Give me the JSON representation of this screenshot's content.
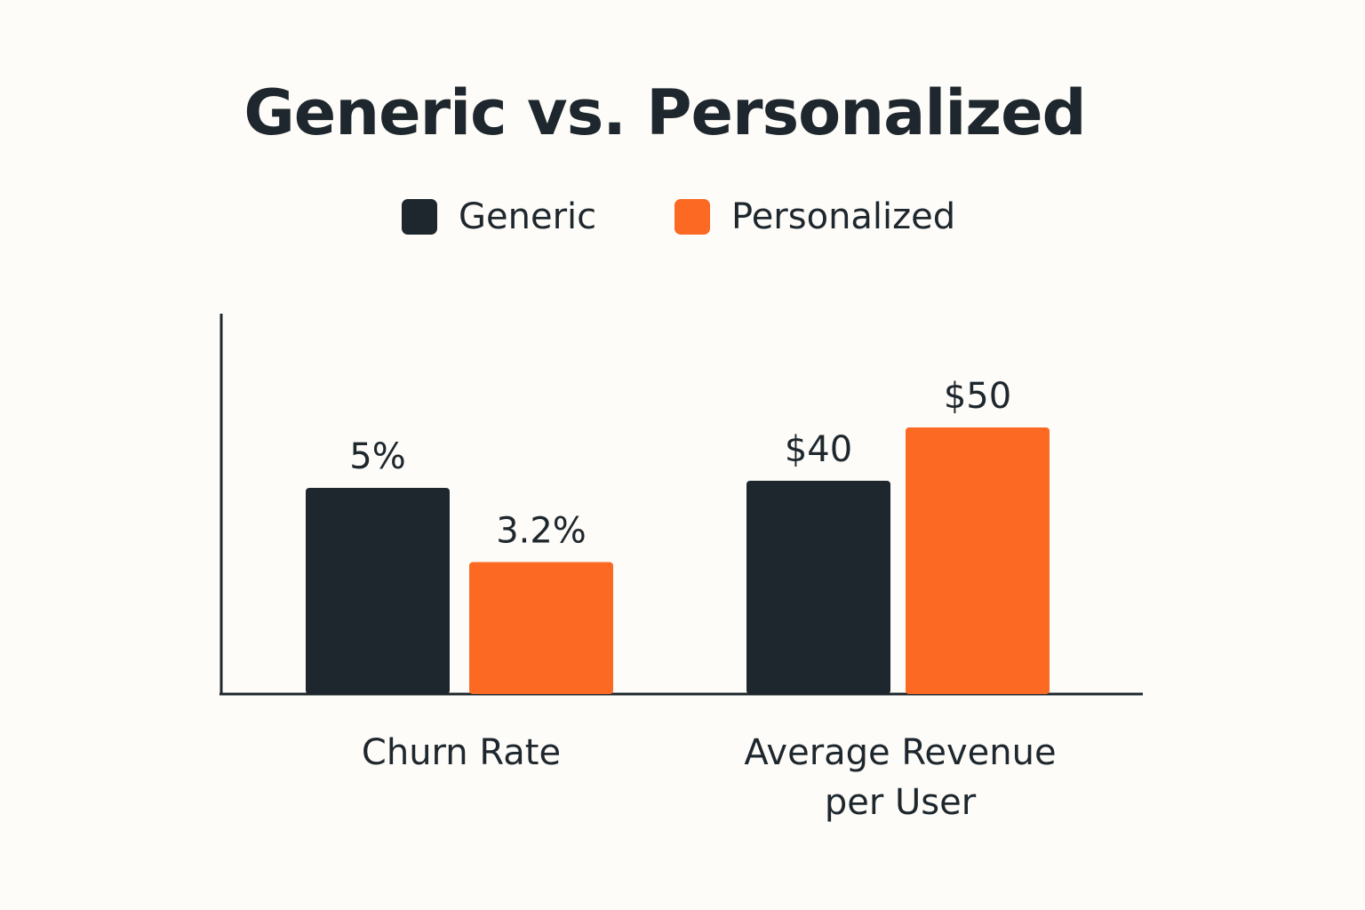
{
  "title": "Generic vs. Personalized",
  "colors": {
    "background": "#fdfcf8",
    "generic": "#1e272d",
    "personalized": "#fb6923",
    "text": "#1e272d"
  },
  "legend": {
    "items": [
      {
        "label": "Generic",
        "color": "#1e272d"
      },
      {
        "label": "Personalized",
        "color": "#fb6923"
      }
    ],
    "placement": "top-center"
  },
  "chart_data": {
    "type": "bar",
    "title": "Generic vs. Personalized",
    "categories": [
      "Churn Rate",
      "Average Revenue per User"
    ],
    "category_label_lines": [
      [
        "Churn Rate"
      ],
      [
        "Average Revenue",
        "per User"
      ]
    ],
    "series": [
      {
        "name": "Generic",
        "color": "#1e272d",
        "values": [
          5,
          40
        ],
        "labels": [
          "5%",
          "$40"
        ]
      },
      {
        "name": "Personalized",
        "color": "#fb6923",
        "values": [
          3.2,
          50
        ],
        "labels": [
          "3.2%",
          "$50"
        ]
      }
    ],
    "xlabel": "",
    "ylabel": "",
    "grid": false,
    "y_ticks_shown": false
  }
}
